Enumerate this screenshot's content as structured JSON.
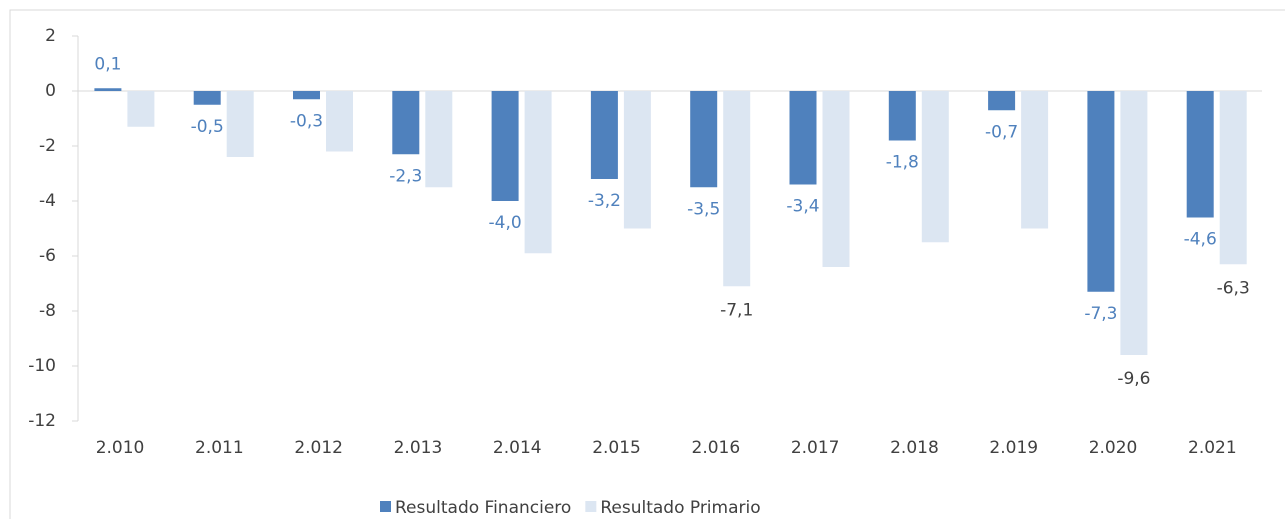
{
  "chart_data": {
    "type": "bar",
    "categories": [
      "2.010",
      "2.011",
      "2.012",
      "2.013",
      "2.014",
      "2.015",
      "2.016",
      "2.017",
      "2.018",
      "2.019",
      "2.020",
      "2.021"
    ],
    "series": [
      {
        "name": "Resultado Financiero",
        "color": "#4f81bd",
        "values": [
          0.1,
          -0.5,
          -0.3,
          -2.3,
          -4.0,
          -3.2,
          -3.5,
          -3.4,
          -1.8,
          -0.7,
          -7.3,
          -4.6
        ],
        "value_labels": [
          "0,1",
          "-0,5",
          "-0,3",
          "-2,3",
          "-4,0",
          "-3,2",
          "-3,5",
          "-3,4",
          "-1,8",
          "-0,7",
          "-7,3",
          "-4,6"
        ]
      },
      {
        "name": "Resultado Primario",
        "color": "#dce6f2",
        "values": [
          -1.3,
          -2.4,
          -2.2,
          -3.5,
          -5.9,
          -5.0,
          -7.1,
          -6.4,
          -5.5,
          -5.0,
          -9.6,
          -6.3
        ],
        "value_labels": [
          null,
          null,
          null,
          null,
          null,
          null,
          "-7,1",
          null,
          null,
          null,
          "-9,6",
          "-6,3"
        ]
      }
    ],
    "ylim": [
      -12,
      2
    ],
    "yticks": [
      2,
      0,
      -2,
      -4,
      -6,
      -8,
      -10,
      -12
    ],
    "legend": "bottom"
  }
}
